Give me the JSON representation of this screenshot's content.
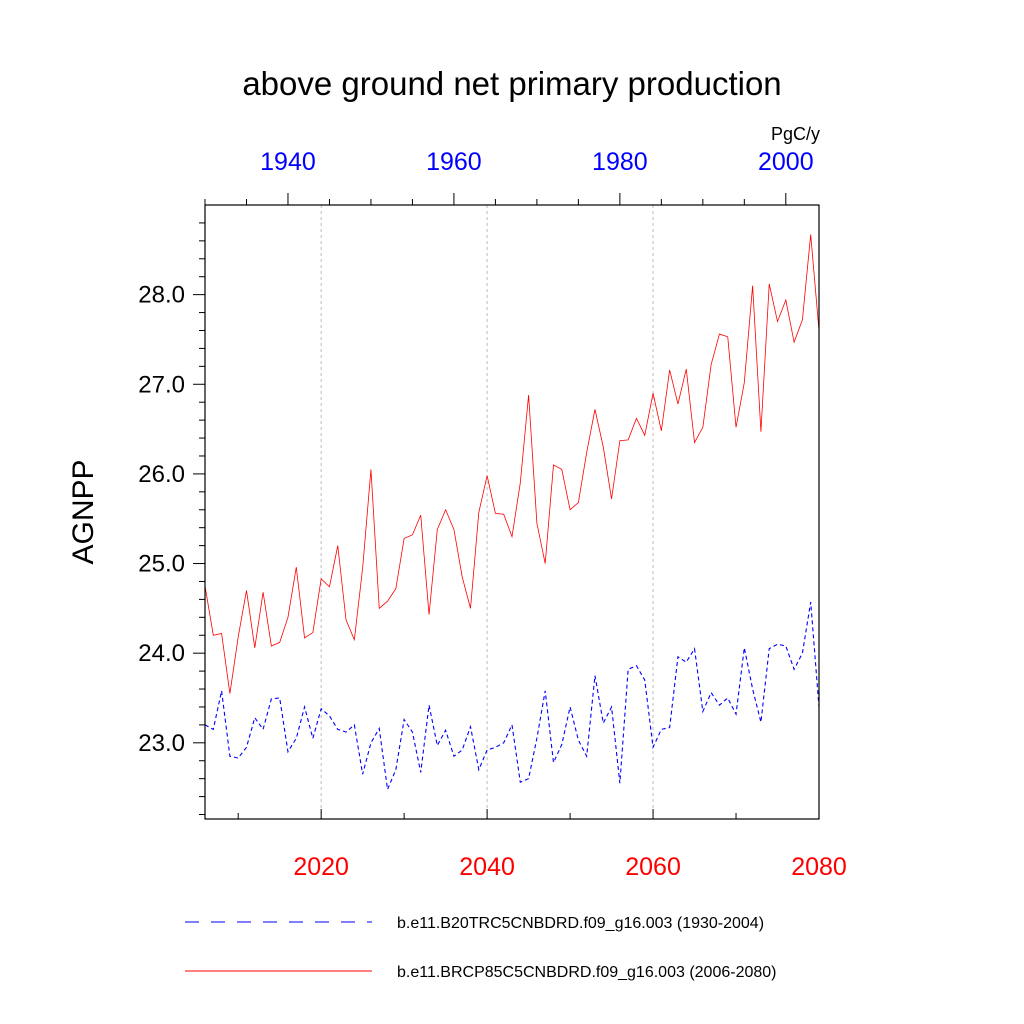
{
  "chart_data": {
    "type": "line",
    "title": "above ground net primary production",
    "units": "PgC/y",
    "ylabel": "AGNPP",
    "ylim": [
      22.15,
      29.0
    ],
    "yticks": [
      {
        "value": 23.0,
        "label": "23.0"
      },
      {
        "value": 24.0,
        "label": "24.0"
      },
      {
        "value": 25.0,
        "label": "25.0"
      },
      {
        "value": 26.0,
        "label": "26.0"
      },
      {
        "value": 27.0,
        "label": "27.0"
      },
      {
        "value": 28.0,
        "label": "28.0"
      }
    ],
    "bottom_axis": {
      "range": [
        2006,
        2080
      ],
      "color": "#ff0000",
      "ticks": [
        {
          "value": 2020,
          "label": "2020"
        },
        {
          "value": 2040,
          "label": "2040"
        },
        {
          "value": 2060,
          "label": "2060"
        },
        {
          "value": 2080,
          "label": "2080"
        }
      ]
    },
    "top_axis": {
      "range": [
        1930,
        2004
      ],
      "color": "#0000ff",
      "ticks": [
        {
          "value": 1940,
          "label": "1940"
        },
        {
          "value": 1960,
          "label": "1960"
        },
        {
          "value": 1980,
          "label": "1980"
        },
        {
          "value": 2000,
          "label": "2000"
        }
      ]
    },
    "grid": "vertical dotted at 2020, 2040, 2060",
    "legend": "bottom",
    "series": [
      {
        "name": "b.e11.B20TRC5CNBDRD.f09_g16.003 (1930-2004)",
        "color": "#0000ff",
        "style": "dashed",
        "x_axis": "top",
        "x_start": 1930,
        "values": [
          23.2,
          23.15,
          23.58,
          22.85,
          22.83,
          22.95,
          23.28,
          23.15,
          23.49,
          23.5,
          22.9,
          23.05,
          23.4,
          23.05,
          23.38,
          23.3,
          23.15,
          23.12,
          23.2,
          22.65,
          23.0,
          23.16,
          22.48,
          22.7,
          23.26,
          23.12,
          22.67,
          23.42,
          22.97,
          23.14,
          22.85,
          22.92,
          23.18,
          22.7,
          22.92,
          22.95,
          23.0,
          23.2,
          22.56,
          22.6,
          23.05,
          23.58,
          22.78,
          22.98,
          23.4,
          23.03,
          22.85,
          23.75,
          23.22,
          23.4,
          22.55,
          23.82,
          23.86,
          23.7,
          22.95,
          23.15,
          23.17,
          23.96,
          23.9,
          24.05,
          23.35,
          23.56,
          23.42,
          23.5,
          23.32,
          24.06,
          23.6,
          23.23,
          24.05,
          24.1,
          24.08,
          23.82,
          24.0,
          24.57,
          23.4
        ]
      },
      {
        "name": "b.e11.BRCP85C5CNBDRD.f09_g16.003 (2006-2080)",
        "color": "#ff0000",
        "style": "solid",
        "x_axis": "bottom",
        "x_start": 2006,
        "values": [
          24.75,
          24.2,
          24.22,
          23.55,
          24.18,
          24.7,
          24.06,
          24.68,
          24.08,
          24.12,
          24.4,
          24.96,
          24.17,
          24.23,
          24.83,
          24.74,
          25.2,
          24.37,
          24.15,
          24.95,
          26.05,
          24.5,
          24.58,
          24.72,
          25.28,
          25.32,
          25.54,
          24.43,
          25.38,
          25.6,
          25.38,
          24.85,
          24.5,
          25.57,
          25.98,
          25.56,
          25.55,
          25.3,
          25.9,
          26.88,
          25.45,
          25.0,
          26.1,
          26.05,
          25.6,
          25.68,
          26.24,
          26.72,
          26.3,
          25.72,
          26.37,
          26.38,
          26.62,
          26.43,
          26.9,
          26.48,
          27.16,
          26.78,
          27.17,
          26.35,
          26.52,
          27.22,
          27.56,
          27.53,
          26.52,
          27.02,
          28.1,
          26.47,
          28.12,
          27.7,
          27.94,
          27.47,
          27.72,
          28.67,
          27.6
        ]
      }
    ]
  }
}
